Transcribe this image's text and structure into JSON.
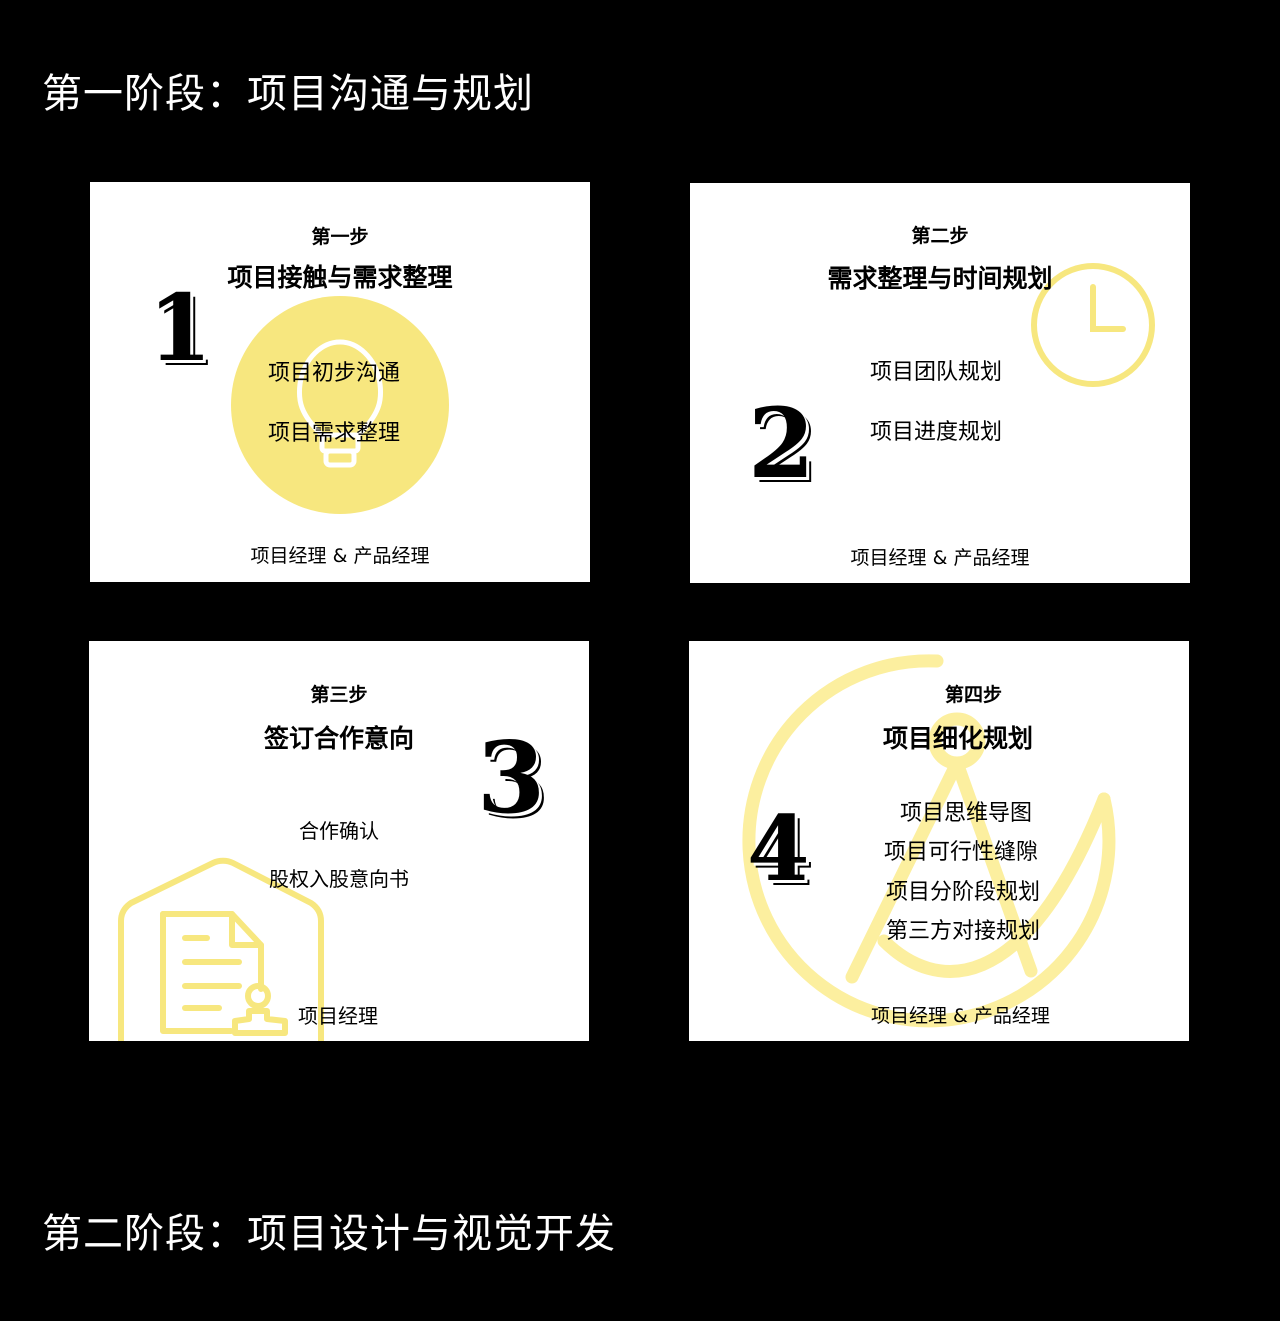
{
  "stage1_title": "第一阶段：项目沟通与规划",
  "stage2_title": "第二阶段：项目设计与视觉开发",
  "accent_color": "#f7e77f",
  "cards": [
    {
      "number": "1",
      "step": "第一步",
      "title": "项目接触与需求整理",
      "items": [
        "项目初步沟通",
        "项目需求整理"
      ],
      "role": "项目经理 & 产品经理",
      "icon": "lightbulb-icon"
    },
    {
      "number": "2",
      "step": "第二步",
      "title": "需求整理与时间规划",
      "items": [
        "项目团队规划",
        "项目进度规划"
      ],
      "role": "项目经理 & 产品经理",
      "icon": "clock-icon"
    },
    {
      "number": "3",
      "step": "第三步",
      "title": "签订合作意向",
      "items": [
        "合作确认",
        "股权入股意向书"
      ],
      "role": "项目经理",
      "icon": "contract-document-icon"
    },
    {
      "number": "4",
      "step": "第四步",
      "title": "项目细化规划",
      "items": [
        "项目思维导图",
        "项目可行性缝隙",
        "项目分阶段规划",
        "第三方对接规划"
      ],
      "role": "项目经理 & 产品经理",
      "icon": "drafting-compass-icon"
    }
  ]
}
